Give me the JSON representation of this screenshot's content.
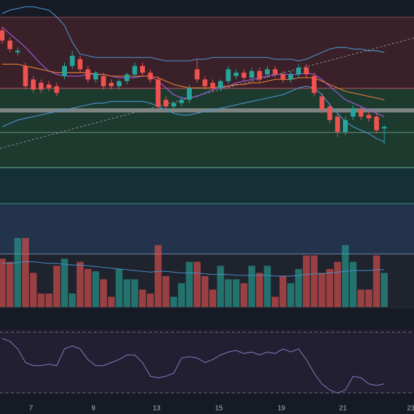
{
  "chart_data": {
    "type": "candlestick",
    "xlim": [
      -0.27,
      52.8
    ],
    "xticks": [
      {
        "value": 3.7,
        "label": "7"
      },
      {
        "value": 11.7,
        "label": "9"
      },
      {
        "value": 19.8,
        "label": "13"
      },
      {
        "value": 27.8,
        "label": "15"
      },
      {
        "value": 35.8,
        "label": "19"
      },
      {
        "value": 43.7,
        "label": "21"
      },
      {
        "value": 52.4,
        "label": "23"
      }
    ],
    "ylim": [
      0,
      100
    ],
    "up_color": "#26a69a",
    "down_color": "#ef5350",
    "candles": {
      "open": [
        82,
        76,
        69,
        61,
        53,
        51,
        50,
        49,
        55,
        61,
        65,
        59,
        53,
        55,
        51,
        49,
        52,
        56,
        61,
        57,
        53,
        41,
        37,
        39,
        41,
        59,
        53,
        51,
        48,
        52,
        55,
        57,
        54,
        58,
        56,
        59,
        56,
        53,
        56,
        60,
        55,
        43,
        37,
        31,
        22,
        31,
        35,
        32,
        31,
        24
      ],
      "high": [
        84,
        78,
        72,
        63,
        55,
        53,
        52,
        51,
        63,
        70,
        67,
        61,
        58,
        57,
        53,
        53,
        57,
        63,
        63,
        59,
        55,
        43,
        40,
        43,
        50,
        65,
        55,
        53,
        53,
        61,
        59,
        59,
        60,
        60,
        61,
        61,
        58,
        58,
        62,
        62,
        57,
        45,
        39,
        33,
        31,
        38,
        37,
        34,
        33,
        26
      ],
      "low": [
        74,
        69,
        67,
        47,
        45,
        45,
        46,
        43,
        53,
        59,
        57,
        51,
        51,
        47,
        47,
        47,
        50,
        54,
        55,
        51,
        35,
        35,
        35,
        37,
        39,
        51,
        47,
        46,
        46,
        50,
        53,
        52,
        52,
        51,
        54,
        54,
        51,
        51,
        54,
        54,
        43,
        33,
        27,
        19,
        20,
        29,
        29,
        28,
        21,
        15
      ],
      "close": [
        76,
        71,
        70,
        49,
        47,
        47,
        48,
        45,
        61,
        67,
        59,
        53,
        57,
        49,
        49,
        52,
        56,
        61,
        57,
        53,
        37,
        37,
        39,
        41,
        48,
        53,
        49,
        48,
        52,
        59,
        57,
        54,
        58,
        53,
        59,
        56,
        53,
        56,
        60,
        56,
        45,
        35,
        29,
        22,
        29,
        36,
        31,
        30,
        23,
        25
      ]
    },
    "series": [
      {
        "name": "upper",
        "color": "#4a90c8",
        "values": [
          92,
          94,
          95,
          96,
          96,
          95,
          94,
          90,
          85,
          75,
          68,
          67,
          66,
          66,
          66,
          66,
          66,
          66,
          66,
          66,
          65,
          64,
          64,
          64,
          64,
          65,
          65,
          66,
          66,
          66,
          66,
          66,
          66,
          66,
          66,
          65,
          65,
          65,
          64,
          65,
          67,
          69,
          71,
          72,
          72,
          71,
          71,
          70,
          70,
          69
        ]
      },
      {
        "name": "lower",
        "color": "#4a90c8",
        "values": [
          25,
          27,
          29,
          30,
          31,
          32,
          33,
          34,
          35,
          36,
          37,
          38,
          39,
          39,
          40,
          40,
          40,
          40,
          40,
          39,
          37,
          35,
          33,
          32,
          32,
          33,
          34,
          35,
          36,
          37,
          38,
          39,
          40,
          41,
          42,
          43,
          44,
          46,
          48,
          49,
          48,
          44,
          38,
          33,
          28,
          25,
          23,
          21,
          18,
          16
        ]
      },
      {
        "name": "ma",
        "color": "#9c5ce0",
        "values": [
          84,
          80,
          76,
          72,
          67,
          62,
          58,
          56,
          55,
          55,
          55,
          56,
          56,
          56,
          55,
          54,
          54,
          54,
          55,
          55,
          52,
          48,
          44,
          42,
          42,
          43,
          45,
          47,
          48,
          49,
          51,
          52,
          53,
          54,
          55,
          56,
          56,
          56,
          56,
          57,
          56,
          53,
          49,
          45,
          41,
          39,
          37,
          35,
          33,
          31
        ]
      },
      {
        "name": "ema",
        "color": "#e07b39",
        "values": [
          62,
          62,
          62,
          61,
          60,
          59,
          58,
          57,
          57,
          57,
          57,
          57,
          56,
          56,
          55,
          55,
          55,
          55,
          55,
          55,
          54,
          52,
          50,
          49,
          48,
          48,
          48,
          48,
          49,
          49,
          50,
          50,
          51,
          51,
          52,
          53,
          53,
          53,
          54,
          54,
          54,
          52,
          50,
          48,
          46,
          45,
          44,
          43,
          42,
          41
        ]
      }
    ],
    "volume": {
      "ylim": [
        0,
        100
      ],
      "values": [
        61,
        57,
        87,
        87,
        43,
        17,
        17,
        52,
        61,
        17,
        57,
        48,
        45,
        35,
        13,
        48,
        35,
        35,
        22,
        17,
        78,
        39,
        13,
        30,
        57,
        57,
        39,
        22,
        52,
        35,
        35,
        30,
        52,
        43,
        52,
        13,
        39,
        30,
        48,
        65,
        65,
        43,
        48,
        57,
        78,
        57,
        22,
        22,
        65,
        43
      ],
      "ma": {
        "color": "#4a90c8",
        "values": [
          55,
          55,
          56,
          57,
          57,
          56,
          55,
          55,
          54,
          53,
          53,
          52,
          51,
          50,
          49,
          48,
          47,
          46,
          45,
          44,
          45,
          45,
          44,
          43,
          43,
          43,
          42,
          41,
          41,
          41,
          40,
          40,
          40,
          40,
          40,
          39,
          39,
          39,
          40,
          41,
          42,
          42,
          43,
          44,
          45,
          46,
          46,
          46,
          47,
          47
        ]
      }
    },
    "rsi": {
      "ylim": [
        23,
        82
      ],
      "yticks": [
        30,
        70
      ],
      "color": "#8e7cc3",
      "values": [
        66,
        64,
        59,
        50,
        48,
        48,
        49,
        48,
        59,
        61,
        59,
        52,
        48,
        48,
        50,
        52,
        55,
        55,
        50,
        41,
        40,
        41,
        43,
        53,
        54,
        53,
        50,
        52,
        55,
        57,
        58,
        56,
        57,
        55,
        57,
        56,
        59,
        57,
        59,
        52,
        43,
        36,
        32,
        30,
        32,
        41,
        40,
        36,
        35,
        36
      ]
    }
  }
}
